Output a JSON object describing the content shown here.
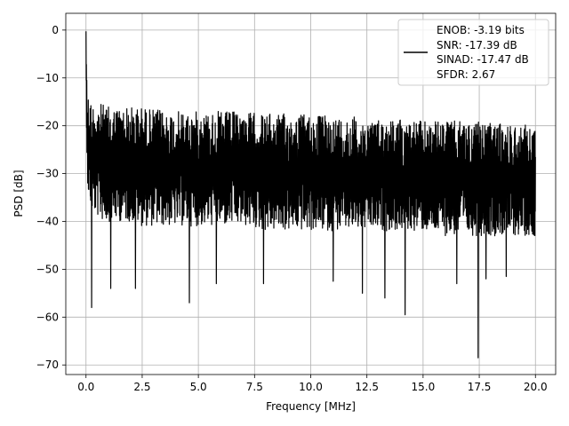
{
  "chart_data": {
    "type": "line",
    "title": "",
    "xlabel": "Frequency [MHz]",
    "ylabel": "PSD [dB]",
    "xlim": [
      -0.9,
      20.9
    ],
    "ylim": [
      -72,
      3.5
    ],
    "grid": true,
    "x_ticks": [
      0.0,
      2.5,
      5.0,
      7.5,
      10.0,
      12.5,
      15.0,
      17.5,
      20.0
    ],
    "x_tick_labels": [
      "0.0",
      "2.5",
      "5.0",
      "7.5",
      "10.0",
      "12.5",
      "15.0",
      "17.5",
      "20.0"
    ],
    "y_ticks": [
      0,
      -10,
      -20,
      -30,
      -40,
      -50,
      -60,
      -70
    ],
    "y_tick_labels": [
      "0",
      "−10",
      "−20",
      "−30",
      "−40",
      "−50",
      "−60",
      "−70"
    ],
    "legend_placement": "top-right",
    "legend_lines": [
      "ENOB: -3.19 bits",
      "SNR: -17.39 dB",
      "SINAD: -17.47 dB",
      "SFDR: 2.67"
    ],
    "series": [
      {
        "color": "#000000",
        "description": "noisy power spectral density, approx. -15 to -45 dB band",
        "x": [
          0.0,
          0.02,
          0.05,
          0.1,
          0.15,
          0.2,
          0.25,
          0.3,
          0.5,
          0.75,
          1.0,
          1.5,
          2.0,
          2.5,
          3.0,
          4.0,
          5.0,
          6.0,
          7.0,
          8.0,
          9.0,
          10.0,
          11.0,
          12.0,
          13.0,
          14.0,
          15.0,
          16.0,
          17.0,
          18.0,
          19.0,
          20.0
        ],
        "upper": [
          0,
          -8,
          -12,
          -13,
          -14,
          -14.5,
          -15,
          -15,
          -15,
          -15.5,
          -16,
          -16,
          -16,
          -16,
          -16.5,
          -17,
          -17,
          -17,
          -17,
          -17.5,
          -17.5,
          -17.5,
          -18,
          -18,
          -18.5,
          -18.5,
          -19,
          -19,
          -19,
          -19.5,
          -19.5,
          -20
        ],
        "lower": [
          -5,
          -20,
          -30,
          -34,
          -36,
          -37,
          -38,
          -38,
          -39,
          -40,
          -40,
          -40,
          -40,
          -41,
          -41,
          -41,
          -41,
          -41,
          -41,
          -42,
          -42,
          -42,
          -42,
          -42,
          -42,
          -42,
          -42,
          -43,
          -43,
          -43,
          -43,
          -43
        ],
        "dips": [
          {
            "x": 0.25,
            "y": -58.0
          },
          {
            "x": 1.1,
            "y": -54.0
          },
          {
            "x": 2.2,
            "y": -54.0
          },
          {
            "x": 4.6,
            "y": -57.0
          },
          {
            "x": 5.8,
            "y": -53.0
          },
          {
            "x": 7.9,
            "y": -53.0
          },
          {
            "x": 11.0,
            "y": -52.5
          },
          {
            "x": 12.3,
            "y": -55.0
          },
          {
            "x": 13.3,
            "y": -56.0
          },
          {
            "x": 14.2,
            "y": -59.5
          },
          {
            "x": 16.5,
            "y": -53.0
          },
          {
            "x": 17.45,
            "y": -68.5
          },
          {
            "x": 17.8,
            "y": -52.0
          },
          {
            "x": 18.7,
            "y": -51.5
          }
        ]
      }
    ]
  }
}
